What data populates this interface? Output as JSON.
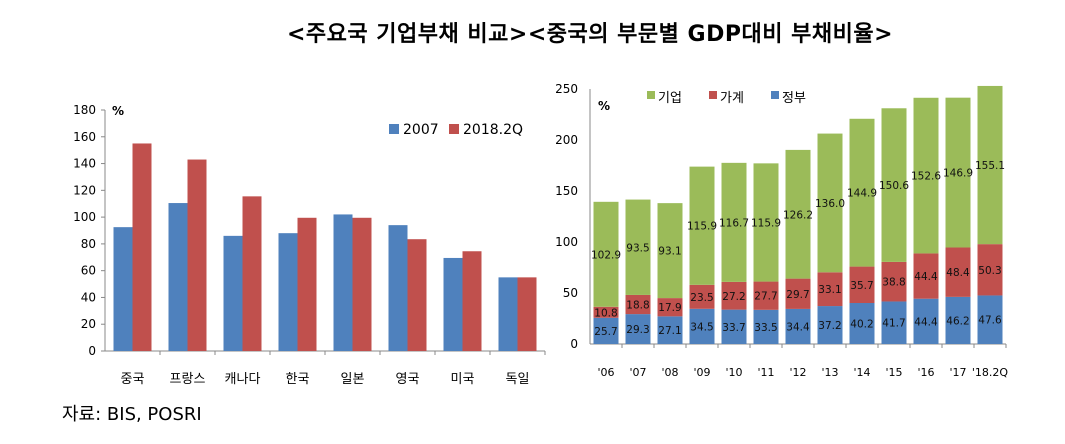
{
  "title": "<주요국 기업부채 비교><중국의 부문별 GDP대비 부채비율>",
  "source": "자료: BIS, POSRI",
  "chart_data": [
    {
      "type": "bar",
      "title": "주요국 기업부채 비교",
      "unit_label": "%",
      "categories": [
        "중국",
        "프랑스",
        "캐나다",
        "한국",
        "일본",
        "영국",
        "미국",
        "독일"
      ],
      "series": [
        {
          "name": "2007",
          "color": "#4F81BD",
          "values": [
            92.5,
            110.5,
            86,
            88,
            102,
            94,
            69.5,
            55
          ]
        },
        {
          "name": "2018.2Q",
          "color": "#C0504D",
          "values": [
            155,
            143,
            115.5,
            99.5,
            99.5,
            83.5,
            74.5,
            55
          ]
        }
      ],
      "ylim": [
        0,
        180
      ],
      "yticks": [
        0,
        20,
        40,
        60,
        80,
        100,
        120,
        140,
        160,
        180
      ],
      "grid": false,
      "legend_placement": "top-right"
    },
    {
      "type": "bar",
      "stacked": true,
      "title": "중국의 부문별 GDP대비 부채비율",
      "unit_label": "%",
      "categories": [
        "'06",
        "'07",
        "'08",
        "'09",
        "'10",
        "'11",
        "'12",
        "'13",
        "'14",
        "'15",
        "'16",
        "'17",
        "'18.2Q"
      ],
      "series": [
        {
          "name": "정부",
          "color": "#4F81BD",
          "values": [
            25.7,
            29.3,
            27.1,
            34.5,
            33.7,
            33.5,
            34.4,
            37.2,
            40.2,
            41.7,
            44.4,
            46.2,
            47.6
          ]
        },
        {
          "name": "가계",
          "color": "#C0504D",
          "values": [
            10.8,
            18.8,
            17.9,
            23.5,
            27.2,
            27.7,
            29.7,
            33.1,
            35.7,
            38.8,
            44.4,
            48.4,
            50.3
          ]
        },
        {
          "name": "기업",
          "color": "#9BBB59",
          "values": [
            102.9,
            93.5,
            93.1,
            115.9,
            116.7,
            115.9,
            126.2,
            136.0,
            144.9,
            150.6,
            152.6,
            146.9,
            155.1
          ]
        }
      ],
      "legend_order": [
        "기업",
        "가계",
        "정부"
      ],
      "ylim": [
        0,
        250
      ],
      "yticks": [
        0,
        50,
        100,
        150,
        200,
        250
      ],
      "grid": false,
      "legend_placement": "top-left"
    }
  ]
}
